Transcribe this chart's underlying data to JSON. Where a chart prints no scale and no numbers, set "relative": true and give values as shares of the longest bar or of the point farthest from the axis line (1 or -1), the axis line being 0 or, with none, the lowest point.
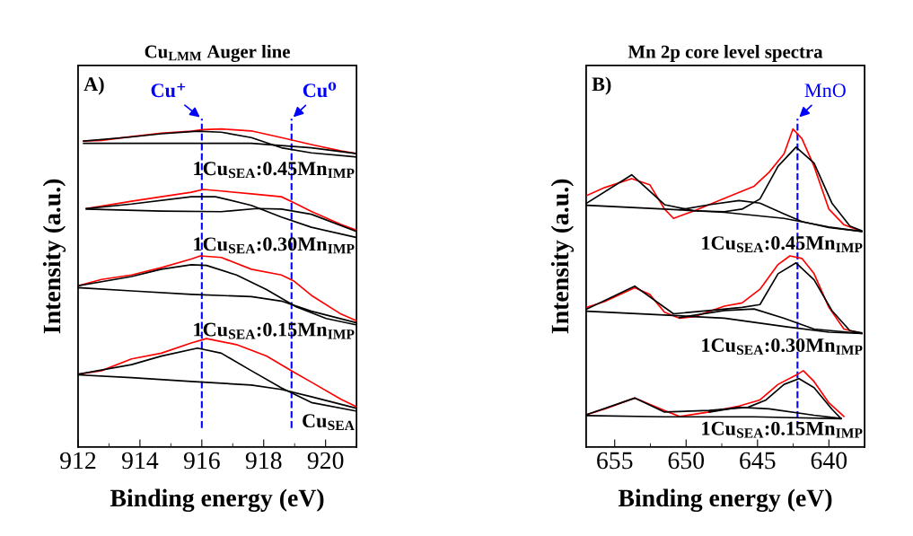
{
  "chart_data": [
    {
      "type": "line",
      "relative": true,
      "title": "Cu$_{LMM}$ Auger line",
      "xlabel": "Binding energy (eV)",
      "ylabel": "Intensity (a.u.)",
      "xlim": [
        912,
        921
      ],
      "xticks": [
        912,
        914,
        916,
        918,
        920
      ],
      "tick_labels": "x",
      "grid": false,
      "legend": false,
      "marker": "none",
      "line_style": "solid",
      "annotations": [
        "A)",
        "1Cu$_{SEA}$:0.45Mn$_{IMP}$",
        "1Cu$_{SEA}$:0.30Mn$_{IMP}$",
        "1Cu$_{SEA}$:0.15Mn$_{IMP}$",
        "Cu$_{SEA}$"
      ],
      "ref_lines": [
        {
          "axis": "x",
          "value": 916.0,
          "label": "Cu⁺",
          "color": "#0000ff",
          "line_style": "dashed"
        },
        {
          "axis": "x",
          "value": 918.9,
          "label": "Cu⁰",
          "color": "#0000ff",
          "line_style": "dashed"
        }
      ],
      "series": [
        {
          "color": "#ff0000",
          "x": [
            912.18,
            912.76,
            913.73,
            914.69,
            915.66,
            916.05,
            916.63,
            917.6,
            918.57,
            919.54,
            920.5,
            920.99
          ],
          "values": [
            0.962,
            0.964,
            0.976,
            0.987,
            0.993,
            0.998,
            1.0,
            0.994,
            0.973,
            0.951,
            0.931,
            0.923
          ]
        },
        {
          "color": "#000000",
          "x": [
            912.18,
            913.73,
            914.69,
            915.86,
            916.63,
            917.6,
            918.57,
            919.54,
            920.99
          ],
          "values": [
            0.962,
            0.975,
            0.985,
            0.993,
            0.99,
            0.973,
            0.941,
            0.925,
            0.912
          ]
        },
        {
          "color": "#000000",
          "x": [
            912.18,
            913.73,
            915.66,
            917.6,
            918.57,
            919.54,
            920.99
          ],
          "values": [
            0.955,
            0.955,
            0.955,
            0.955,
            0.948,
            0.941,
            0.923
          ]
        },
        {
          "color": "#ff0000",
          "x": [
            912.27,
            913.73,
            914.69,
            915.66,
            916.05,
            916.63,
            917.6,
            918.57,
            918.96,
            919.54,
            920.5,
            920.99
          ],
          "values": [
            0.75,
            0.773,
            0.787,
            0.801,
            0.81,
            0.805,
            0.796,
            0.787,
            0.769,
            0.741,
            0.7,
            0.682
          ]
        },
        {
          "color": "#000000",
          "x": [
            912.27,
            913.73,
            915.66,
            916.44,
            917.6,
            918.57,
            919.54,
            920.99
          ],
          "values": [
            0.75,
            0.764,
            0.787,
            0.787,
            0.76,
            0.723,
            0.691,
            0.659
          ]
        },
        {
          "color": "#000000",
          "x": [
            912.27,
            914.69,
            916.63,
            917.79,
            918.57,
            919.54,
            920.99
          ],
          "values": [
            0.748,
            0.742,
            0.74,
            0.75,
            0.748,
            0.732,
            0.678
          ]
        },
        {
          "color": "#ff0000",
          "x": [
            912.0,
            912.76,
            913.73,
            914.69,
            915.66,
            915.95,
            916.63,
            917.6,
            918.57,
            918.96,
            919.54,
            920.5,
            920.99
          ],
          "values": [
            0.507,
            0.527,
            0.541,
            0.564,
            0.591,
            0.601,
            0.596,
            0.559,
            0.541,
            0.523,
            0.477,
            0.418,
            0.397
          ]
        },
        {
          "color": "#000000",
          "x": [
            912.0,
            913.73,
            914.69,
            915.66,
            916.15,
            917.12,
            918.09,
            919.05,
            920.02,
            920.99
          ],
          "values": [
            0.507,
            0.536,
            0.559,
            0.573,
            0.571,
            0.541,
            0.495,
            0.441,
            0.404,
            0.384
          ]
        },
        {
          "color": "#000000",
          "x": [
            912.0,
            913.73,
            915.66,
            917.6,
            918.57,
            919.54,
            920.99
          ],
          "values": [
            0.501,
            0.491,
            0.48,
            0.473,
            0.459,
            0.427,
            0.391
          ]
        },
        {
          "color": "#ff0000",
          "x": [
            912.0,
            912.76,
            913.73,
            914.69,
            915.66,
            916.15,
            917.12,
            918.09,
            918.96,
            919.54,
            920.5,
            920.99
          ],
          "values": [
            0.229,
            0.24,
            0.277,
            0.295,
            0.327,
            0.341,
            0.322,
            0.286,
            0.236,
            0.204,
            0.15,
            0.127
          ]
        },
        {
          "color": "#000000",
          "x": [
            912.0,
            913.73,
            914.69,
            915.86,
            916.63,
            917.6,
            918.57,
            919.54,
            920.99
          ],
          "values": [
            0.229,
            0.259,
            0.286,
            0.311,
            0.295,
            0.24,
            0.186,
            0.14,
            0.113
          ]
        },
        {
          "color": "#000000",
          "x": [
            912.0,
            913.73,
            915.66,
            917.6,
            918.57,
            919.54,
            920.99
          ],
          "values": [
            0.227,
            0.218,
            0.206,
            0.195,
            0.181,
            0.158,
            0.122
          ]
        }
      ]
    },
    {
      "type": "line",
      "relative": true,
      "title": "Mn 2p core level spectra",
      "xlabel": "Binding energy (eV)",
      "ylabel": "Intensity (a.u.)",
      "xlim": [
        657,
        637.5
      ],
      "xticks": [
        655,
        650,
        645,
        640
      ],
      "tick_labels": "x",
      "grid": false,
      "legend": false,
      "marker": "none",
      "line_style": "solid",
      "annotations": [
        "B)",
        "1Cu$_{SEA}$:0.45Mn$_{IMP}$",
        "1Cu$_{SEA}$:0.30Mn$_{IMP}$",
        "1Cu$_{SEA}$:0.15Mn$_{IMP}$"
      ],
      "ref_lines": [
        {
          "axis": "x",
          "value": 642.2,
          "label": "MnO",
          "color": "#0000ff",
          "line_style": "dashed"
        }
      ],
      "series": [
        {
          "color": "#ff0000",
          "x": [
            656.95,
            655.69,
            653.81,
            652.55,
            651.51,
            650.88,
            649.42,
            647.33,
            645.24,
            644.19,
            643.14,
            642.52,
            641.89,
            641.04,
            640.0,
            638.95,
            637.7
          ],
          "values": [
            0.791,
            0.816,
            0.844,
            0.825,
            0.748,
            0.719,
            0.743,
            0.782,
            0.82,
            0.864,
            0.922,
            1.0,
            0.97,
            0.883,
            0.748,
            0.699,
            0.678
          ]
        },
        {
          "color": "#000000",
          "x": [
            656.95,
            653.81,
            651.51,
            649.42,
            647.33,
            646.08,
            644.83,
            643.56,
            642.3,
            641.04,
            639.79,
            638.53,
            637.7
          ],
          "values": [
            0.767,
            0.856,
            0.762,
            0.743,
            0.74,
            0.748,
            0.78,
            0.883,
            0.943,
            0.893,
            0.767,
            0.695,
            0.68
          ]
        },
        {
          "color": "#000000",
          "x": [
            650.46,
            648.38,
            646.29,
            644.83,
            643.14,
            641.89,
            640.0,
            637.7
          ],
          "values": [
            0.746,
            0.762,
            0.775,
            0.767,
            0.733,
            0.709,
            0.69,
            0.678
          ]
        },
        {
          "color": "#000000",
          "x": [
            656.95,
            651.51,
            647.33,
            643.14,
            640.0,
            637.7
          ],
          "values": [
            0.76,
            0.748,
            0.738,
            0.719,
            0.692,
            0.678
          ]
        },
        {
          "color": "#ff0000",
          "x": [
            656.95,
            655.69,
            653.6,
            652.55,
            651.51,
            650.46,
            649.42,
            647.33,
            646.08,
            644.83,
            643.56,
            642.73,
            641.89,
            641.04,
            640.0,
            638.95,
            637.7
          ],
          "values": [
            0.439,
            0.458,
            0.501,
            0.48,
            0.424,
            0.405,
            0.41,
            0.443,
            0.453,
            0.496,
            0.574,
            0.601,
            0.593,
            0.545,
            0.439,
            0.371,
            0.357
          ]
        },
        {
          "color": "#000000",
          "x": [
            656.95,
            653.6,
            650.88,
            648.38,
            646.08,
            644.83,
            643.56,
            642.3,
            641.04,
            639.79,
            638.53,
            637.7
          ],
          "values": [
            0.434,
            0.506,
            0.419,
            0.429,
            0.439,
            0.448,
            0.545,
            0.579,
            0.526,
            0.429,
            0.366,
            0.359
          ]
        },
        {
          "color": "#000000",
          "x": [
            650.46,
            647.33,
            645.24,
            643.14,
            641.04,
            637.7
          ],
          "values": [
            0.407,
            0.429,
            0.434,
            0.405,
            0.371,
            0.357
          ]
        },
        {
          "color": "#000000",
          "x": [
            656.95,
            651.51,
            647.33,
            643.14,
            640.0,
            637.7
          ],
          "values": [
            0.427,
            0.415,
            0.405,
            0.379,
            0.361,
            0.357
          ]
        },
        {
          "color": "#ff0000",
          "x": [
            656.95,
            655.69,
            653.6,
            651.51,
            650.46,
            648.38,
            646.29,
            644.83,
            643.56,
            642.3,
            641.79,
            641.04,
            640.0,
            638.95
          ],
          "values": [
            0.102,
            0.12,
            0.154,
            0.115,
            0.096,
            0.11,
            0.129,
            0.148,
            0.197,
            0.226,
            0.24,
            0.206,
            0.139,
            0.096
          ]
        },
        {
          "color": "#000000",
          "x": [
            656.95,
            653.6,
            651.51,
            648.38,
            645.66,
            644.4,
            643.14,
            642.09,
            641.04,
            639.79,
            639.16
          ],
          "values": [
            0.102,
            0.154,
            0.11,
            0.115,
            0.125,
            0.148,
            0.197,
            0.215,
            0.187,
            0.119,
            0.09
          ]
        },
        {
          "color": "#000000",
          "x": [
            648.38,
            646.29,
            644.19,
            641.04,
            639.16
          ],
          "values": [
            0.11,
            0.125,
            0.12,
            0.1,
            0.09
          ]
        },
        {
          "color": "#000000",
          "x": [
            656.95,
            651.51,
            645.24,
            639.16
          ],
          "values": [
            0.099,
            0.095,
            0.095,
            0.089
          ]
        }
      ]
    }
  ]
}
